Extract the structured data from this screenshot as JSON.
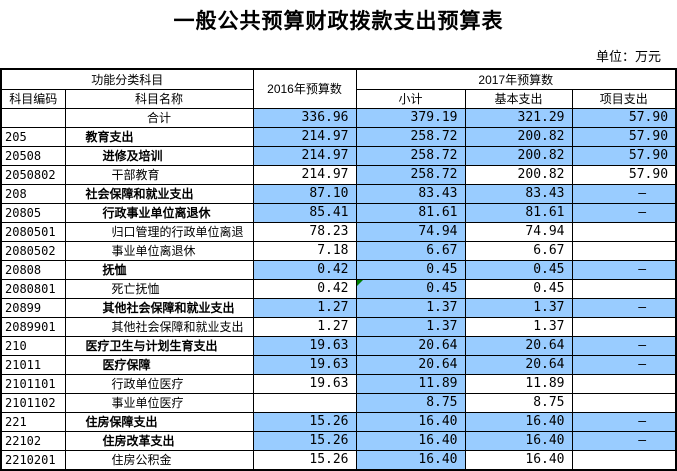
{
  "title": "一般公共预算财政拨款支出预算表",
  "unit_label": "单位：万元",
  "colors": {
    "highlight_blue": "#99CCFF",
    "border": "#000000",
    "error_triangle_green": "#008000"
  },
  "table": {
    "header": {
      "group_function": "功能分类科目",
      "col_code": "科目编码",
      "col_name": "科目名称",
      "col_2016": "2016年预算数",
      "group_2017": "2017年预算数",
      "col_subtotal": "小计",
      "col_basic": "基本支出",
      "col_project": "项目支出"
    },
    "rows": [
      {
        "code": "",
        "name": "合计",
        "level": 0,
        "bold": false,
        "y2016": "336.96",
        "subtotal": "379.19",
        "basic": "321.29",
        "project": "57.90",
        "hl_all": true,
        "triangle": false
      },
      {
        "code": "205",
        "name": "教育支出",
        "level": 1,
        "bold": true,
        "y2016": "214.97",
        "subtotal": "258.72",
        "basic": "200.82",
        "project": "57.90",
        "hl_all": true,
        "triangle": false
      },
      {
        "code": "20508",
        "name": "进修及培训",
        "level": 2,
        "bold": true,
        "y2016": "214.97",
        "subtotal": "258.72",
        "basic": "200.82",
        "project": "57.90",
        "hl_all": true,
        "triangle": false
      },
      {
        "code": "2050802",
        "name": "干部教育",
        "level": 3,
        "bold": false,
        "y2016": "214.97",
        "subtotal": "258.72",
        "basic": "200.82",
        "project": "57.90",
        "hl_all": false,
        "triangle": false
      },
      {
        "code": "208",
        "name": "社会保障和就业支出",
        "level": 1,
        "bold": true,
        "y2016": "87.10",
        "subtotal": "83.43",
        "basic": "83.43",
        "project": "–",
        "hl_all": true,
        "triangle": false
      },
      {
        "code": "20805",
        "name": "行政事业单位离退休",
        "level": 2,
        "bold": true,
        "y2016": "85.41",
        "subtotal": "81.61",
        "basic": "81.61",
        "project": "–",
        "hl_all": true,
        "triangle": false
      },
      {
        "code": "2080501",
        "name": "归口管理的行政单位离退",
        "level": 3,
        "bold": false,
        "y2016": "78.23",
        "subtotal": "74.94",
        "basic": "74.94",
        "project": "",
        "hl_all": false,
        "triangle": false
      },
      {
        "code": "2080502",
        "name": "事业单位离退休",
        "level": 3,
        "bold": false,
        "y2016": "7.18",
        "subtotal": "6.67",
        "basic": "6.67",
        "project": "",
        "hl_all": false,
        "triangle": false
      },
      {
        "code": "20808",
        "name": "抚恤",
        "level": 2,
        "bold": true,
        "y2016": "0.42",
        "subtotal": "0.45",
        "basic": "0.45",
        "project": "–",
        "hl_all": true,
        "triangle": false
      },
      {
        "code": "2080801",
        "name": "死亡抚恤",
        "level": 3,
        "bold": false,
        "y2016": "0.42",
        "subtotal": "0.45",
        "basic": "0.45",
        "project": "",
        "hl_all": false,
        "triangle": true
      },
      {
        "code": "20899",
        "name": "其他社会保障和就业支出",
        "level": 2,
        "bold": true,
        "y2016": "1.27",
        "subtotal": "1.37",
        "basic": "1.37",
        "project": "–",
        "hl_all": true,
        "triangle": false
      },
      {
        "code": "2089901",
        "name": "其他社会保障和就业支出",
        "level": 3,
        "bold": false,
        "y2016": "1.27",
        "subtotal": "1.37",
        "basic": "1.37",
        "project": "",
        "hl_all": false,
        "triangle": false
      },
      {
        "code": "210",
        "name": "医疗卫生与计划生育支出",
        "level": 1,
        "bold": true,
        "y2016": "19.63",
        "subtotal": "20.64",
        "basic": "20.64",
        "project": "–",
        "hl_all": true,
        "triangle": false
      },
      {
        "code": "21011",
        "name": "医疗保障",
        "level": 2,
        "bold": true,
        "y2016": "19.63",
        "subtotal": "20.64",
        "basic": "20.64",
        "project": "–",
        "hl_all": true,
        "triangle": false
      },
      {
        "code": "2101101",
        "name": "行政单位医疗",
        "level": 3,
        "bold": false,
        "y2016": "19.63",
        "subtotal": "11.89",
        "basic": "11.89",
        "project": "",
        "hl_all": false,
        "triangle": false
      },
      {
        "code": "2101102",
        "name": "事业单位医疗",
        "level": 3,
        "bold": false,
        "y2016": "",
        "subtotal": "8.75",
        "basic": "8.75",
        "project": "",
        "hl_all": false,
        "triangle": false
      },
      {
        "code": "221",
        "name": "住房保障支出",
        "level": 1,
        "bold": true,
        "y2016": "15.26",
        "subtotal": "16.40",
        "basic": "16.40",
        "project": "–",
        "hl_all": true,
        "triangle": false
      },
      {
        "code": "22102",
        "name": "住房改革支出",
        "level": 2,
        "bold": true,
        "y2016": "15.26",
        "subtotal": "16.40",
        "basic": "16.40",
        "project": "–",
        "hl_all": true,
        "triangle": false
      },
      {
        "code": "2210201",
        "name": "住房公积金",
        "level": 3,
        "bold": false,
        "y2016": "15.26",
        "subtotal": "16.40",
        "basic": "16.40",
        "project": "",
        "hl_all": false,
        "triangle": false
      }
    ]
  }
}
